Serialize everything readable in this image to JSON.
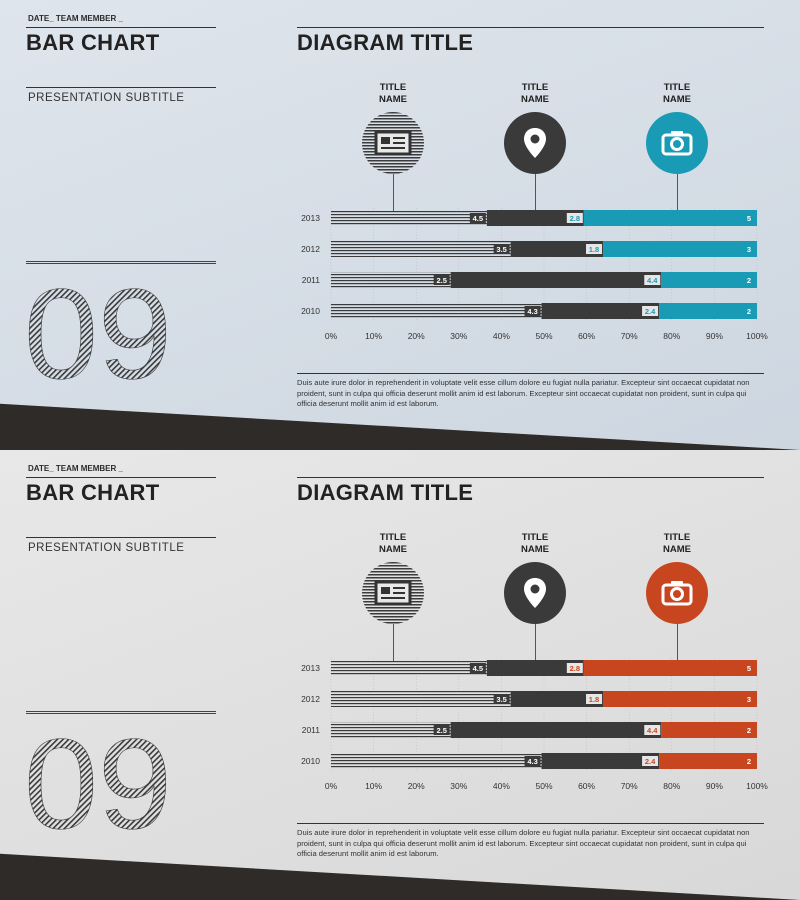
{
  "slides": [
    {
      "header": {
        "date_label": "DATE_ TEAM MEMBER _",
        "title": "BAR CHART",
        "subtitle": "PRESENTATION SUBTITLE",
        "number": "09"
      },
      "diagram_title": "DIAGRAM TITLE",
      "icons": [
        {
          "title_line1": "TITLE",
          "title_line2": "NAME",
          "icon": "newspaper-icon"
        },
        {
          "title_line1": "TITLE",
          "title_line2": "NAME",
          "icon": "map-pin-icon"
        },
        {
          "title_line1": "TITLE",
          "title_line2": "NAME",
          "icon": "camera-icon"
        }
      ],
      "accent": "#1a9bb5",
      "body_text": "Duis aute irure dolor in reprehenderit in voluptate velit esse cillum dolore eu fugiat nulla pariatur. Excepteur sint occaecat cupidatat non proident, sunt in culpa qui officia deserunt mollit anim id est laborum. Excepteur sint occaecat cupidatat non proident, sunt in culpa qui officia deserunt mollit anim id est laborum."
    },
    {
      "header": {
        "date_label": "DATE_ TEAM MEMBER _",
        "title": "BAR CHART",
        "subtitle": "PRESENTATION SUBTITLE",
        "number": "09"
      },
      "diagram_title": "DIAGRAM TITLE",
      "icons": [
        {
          "title_line1": "TITLE",
          "title_line2": "NAME",
          "icon": "newspaper-icon"
        },
        {
          "title_line1": "TITLE",
          "title_line2": "NAME",
          "icon": "map-pin-icon"
        },
        {
          "title_line1": "TITLE",
          "title_line2": "NAME",
          "icon": "camera-icon"
        }
      ],
      "accent": "#c8461f",
      "body_text": "Duis aute irure dolor in reprehenderit in voluptate velit esse cillum dolore eu fugiat nulla pariatur. Excepteur sint occaecat cupidatat non proident, sunt in culpa qui officia deserunt mollit anim id est laborum. Excepteur sint occaecat cupidatat non proident, sunt in culpa qui officia deserunt mollit anim id est laborum."
    }
  ],
  "chart_data": [
    {
      "type": "bar",
      "orientation": "horizontal",
      "stacked": "100%",
      "categories": [
        "2013",
        "2012",
        "2011",
        "2010"
      ],
      "series": [
        {
          "values": [
            4.5,
            3.5,
            2.5,
            4.3
          ],
          "color": "#b8b8b8"
        },
        {
          "values": [
            2.8,
            1.8,
            4.4,
            2.4
          ],
          "color": "#3a3a3a"
        },
        {
          "values": [
            5,
            3,
            2,
            2
          ],
          "color": "#1a9bb5"
        }
      ],
      "xticks": [
        "0%",
        "10%",
        "20%",
        "30%",
        "40%",
        "50%",
        "60%",
        "70%",
        "80%",
        "90%",
        "100%"
      ],
      "xlim": [
        0,
        100
      ]
    },
    {
      "type": "bar",
      "orientation": "horizontal",
      "stacked": "100%",
      "categories": [
        "2013",
        "2012",
        "2011",
        "2010"
      ],
      "series": [
        {
          "values": [
            4.5,
            3.5,
            2.5,
            4.3
          ],
          "color": "#b8b8b8"
        },
        {
          "values": [
            2.8,
            1.8,
            4.4,
            2.4
          ],
          "color": "#3a3a3a"
        },
        {
          "values": [
            5,
            3,
            2,
            2
          ],
          "color": "#c8461f"
        }
      ],
      "xticks": [
        "0%",
        "10%",
        "20%",
        "30%",
        "40%",
        "50%",
        "60%",
        "70%",
        "80%",
        "90%",
        "100%"
      ],
      "xlim": [
        0,
        100
      ]
    }
  ]
}
